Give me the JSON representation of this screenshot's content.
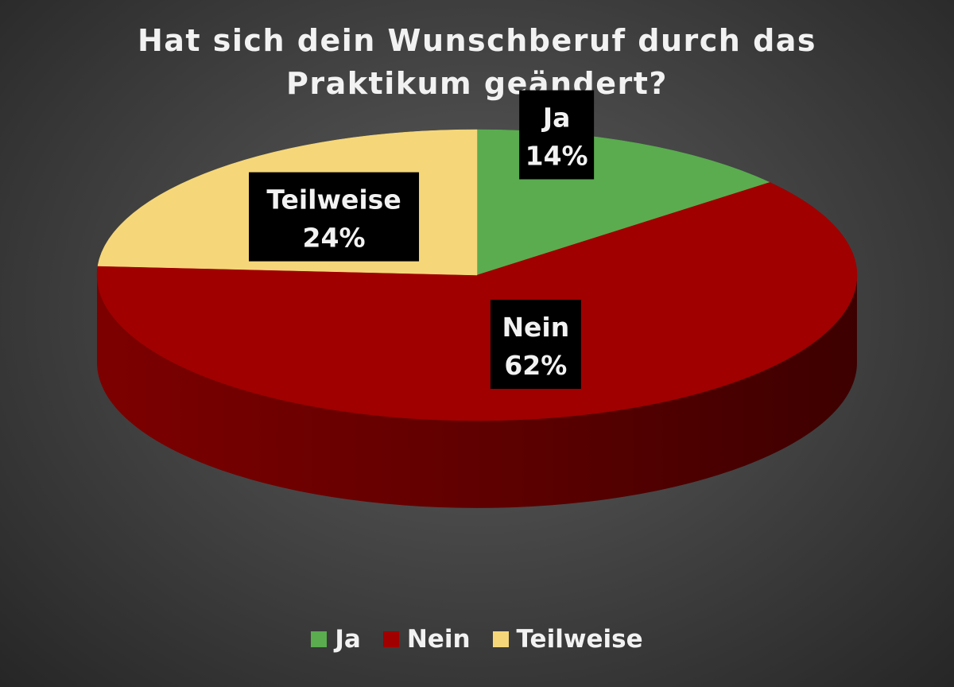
{
  "chart_data": {
    "type": "pie",
    "title": "Hat sich dein Wunschberuf durch das Praktikum geändert?",
    "title_lines": [
      "Hat sich dein Wunschberuf durch das",
      "Praktikum geändert?"
    ],
    "categories": [
      "Ja",
      "Nein",
      "Teilweise"
    ],
    "values": [
      14,
      62,
      24
    ],
    "unit": "%",
    "data_labels": [
      {
        "name": "Ja",
        "value": "14%"
      },
      {
        "name": "Nein",
        "value": "62%"
      },
      {
        "name": "Teilweise",
        "value": "24%"
      }
    ],
    "colors": [
      "#5aac4f",
      "#a00000",
      "#f5d77a"
    ],
    "legend_position": "bottom",
    "style": "3d"
  }
}
